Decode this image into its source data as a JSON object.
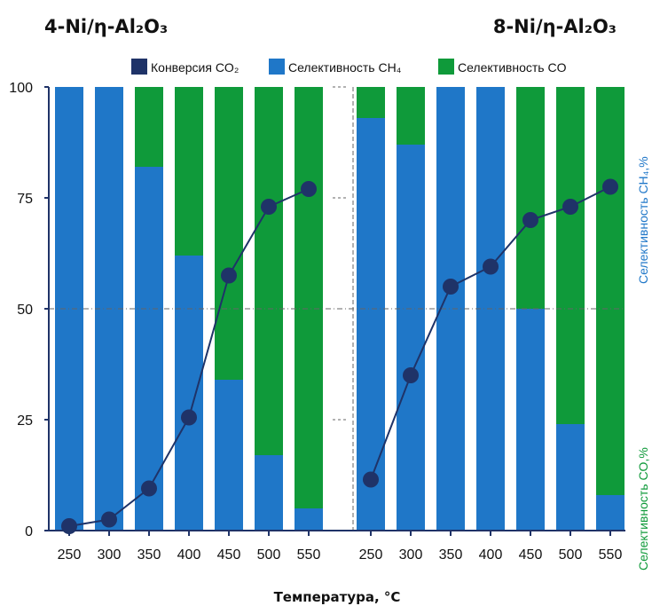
{
  "titles": {
    "left": "4-Ni/η-Al₂O₃",
    "right": "8-Ni/η-Al₂O₃"
  },
  "legend": {
    "conversion": "Конверсия CO₂",
    "ch4": "Селективность CH₄",
    "co": "Селективность CO"
  },
  "xlabel": "Температура, °C",
  "side_labels": {
    "ch4": "Селективность CH₄,%",
    "co": "Селективность CO,%"
  },
  "y_ticks": [
    "0",
    "25",
    "50",
    "75",
    "100"
  ],
  "colors": {
    "ch4": "#1f77c8",
    "co": "#0f9a3a",
    "conversion": "#1f3368",
    "grid": "#666666"
  },
  "chart_data": [
    {
      "type": "bar",
      "title": "4-Ni/η-Al₂O₃",
      "stacked": true,
      "categories": [
        "250",
        "300",
        "350",
        "400",
        "450",
        "500",
        "550"
      ],
      "ylim": [
        0,
        100
      ],
      "series": [
        {
          "name": "Селективность CH₄",
          "kind": "bar",
          "values": [
            100,
            100,
            82,
            62,
            34,
            17,
            5
          ]
        },
        {
          "name": "Селективность CO",
          "kind": "bar",
          "values": [
            0,
            0,
            18,
            38,
            66,
            83,
            95
          ]
        },
        {
          "name": "Конверсия CO₂",
          "kind": "line",
          "values": [
            1,
            2.5,
            9.5,
            25.5,
            57.5,
            73,
            77
          ]
        }
      ]
    },
    {
      "type": "bar",
      "title": "8-Ni/η-Al₂O₃",
      "stacked": true,
      "categories": [
        "250",
        "300",
        "350",
        "400",
        "450",
        "500",
        "550"
      ],
      "ylim": [
        0,
        100
      ],
      "series": [
        {
          "name": "Селективность CH₄",
          "kind": "bar",
          "values": [
            93,
            87,
            100,
            100,
            50,
            24,
            8
          ]
        },
        {
          "name": "Селективность CO",
          "kind": "bar",
          "values": [
            7,
            13,
            0,
            0,
            50,
            76,
            92
          ]
        },
        {
          "name": "Конверсия CO₂",
          "kind": "line",
          "values": [
            11.5,
            35,
            55,
            59.5,
            70,
            73,
            77.5
          ]
        }
      ]
    }
  ]
}
